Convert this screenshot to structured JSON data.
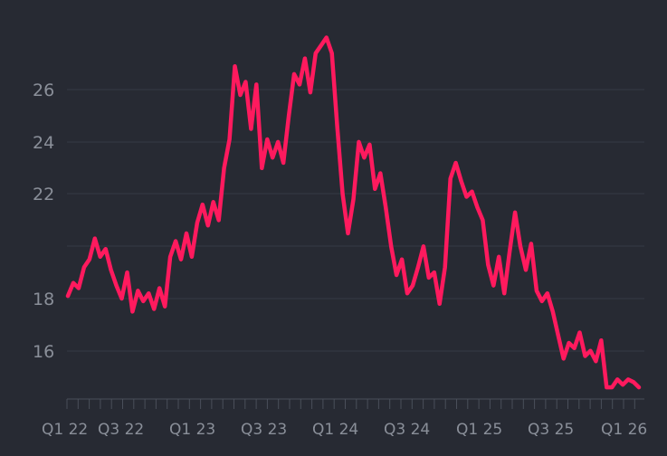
{
  "chart_data": {
    "type": "line",
    "title": "",
    "xlabel": "",
    "ylabel": "",
    "grid": true,
    "ylim": [
      14.3,
      28.4
    ],
    "y_ticks": [
      16,
      18,
      22,
      24,
      26
    ],
    "x_ticks": [
      "Q1 22",
      "Q3 22",
      "Q1 23",
      "Q3 23",
      "Q1 24",
      "Q3 24",
      "Q1 25",
      "Q3 25",
      "Q1 26"
    ],
    "series": [
      {
        "color": "#ff1a5e",
        "points": [
          [
            "Q1 22",
            18.1
          ],
          [
            "Q1 22",
            18.6
          ],
          [
            "Q1 22",
            18.4
          ],
          [
            "Q1 22",
            19.2
          ],
          [
            "Q1 22",
            19.5
          ],
          [
            "Q2 22",
            20.3
          ],
          [
            "Q2 22",
            19.6
          ],
          [
            "Q2 22",
            19.9
          ],
          [
            "Q2 22",
            19.1
          ],
          [
            "Q2 22",
            18.5
          ],
          [
            "Q3 22",
            18.0
          ],
          [
            "Q3 22",
            19.0
          ],
          [
            "Q3 22",
            17.5
          ],
          [
            "Q3 22",
            18.3
          ],
          [
            "Q3 22",
            17.9
          ],
          [
            "Q3 22",
            18.2
          ],
          [
            "Q4 22",
            17.6
          ],
          [
            "Q4 22",
            18.4
          ],
          [
            "Q4 22",
            17.7
          ],
          [
            "Q4 22",
            19.6
          ],
          [
            "Q4 22",
            20.2
          ],
          [
            "Q4 22",
            19.5
          ],
          [
            "Q1 23",
            20.5
          ],
          [
            "Q1 23",
            19.6
          ],
          [
            "Q1 23",
            20.9
          ],
          [
            "Q1 23",
            21.6
          ],
          [
            "Q1 23",
            20.8
          ],
          [
            "Q2 23",
            21.7
          ],
          [
            "Q2 23",
            21.0
          ],
          [
            "Q2 23",
            23.0
          ],
          [
            "Q2 23",
            24.1
          ],
          [
            "Q2 23",
            26.9
          ],
          [
            "Q3 23",
            25.8
          ],
          [
            "Q3 23",
            26.3
          ],
          [
            "Q3 23",
            24.5
          ],
          [
            "Q3 23",
            26.2
          ],
          [
            "Q3 23",
            23.0
          ],
          [
            "Q3 23",
            24.1
          ],
          [
            "Q3 23",
            23.4
          ],
          [
            "Q3 23",
            24.0
          ],
          [
            "Q3 23",
            23.2
          ],
          [
            "Q3 23",
            25.0
          ],
          [
            "Q4 23",
            26.6
          ],
          [
            "Q4 23",
            26.2
          ],
          [
            "Q4 23",
            27.2
          ],
          [
            "Q4 23",
            25.9
          ],
          [
            "Q4 23",
            27.4
          ],
          [
            "Q4 23",
            27.7
          ],
          [
            "Q4 23",
            28.0
          ],
          [
            "Q4 23",
            27.4
          ],
          [
            "Q1 24",
            24.6
          ],
          [
            "Q1 24",
            22.0
          ],
          [
            "Q1 24",
            20.5
          ],
          [
            "Q1 24",
            21.8
          ],
          [
            "Q1 24",
            24.0
          ],
          [
            "Q1 24",
            23.4
          ],
          [
            "Q1 24",
            23.9
          ],
          [
            "Q2 24",
            22.2
          ],
          [
            "Q2 24",
            22.8
          ],
          [
            "Q2 24",
            21.5
          ],
          [
            "Q2 24",
            20.0
          ],
          [
            "Q2 24",
            18.9
          ],
          [
            "Q2 24",
            19.5
          ],
          [
            "Q2 24",
            18.2
          ],
          [
            "Q3 24",
            18.5
          ],
          [
            "Q3 24",
            19.2
          ],
          [
            "Q3 24",
            20.0
          ],
          [
            "Q3 24",
            18.8
          ],
          [
            "Q3 24",
            19.0
          ],
          [
            "Q3 24",
            17.8
          ],
          [
            "Q3 24",
            19.2
          ],
          [
            "Q4 24",
            22.6
          ],
          [
            "Q4 24",
            23.2
          ],
          [
            "Q4 24",
            22.5
          ],
          [
            "Q4 24",
            21.9
          ],
          [
            "Q4 24",
            22.1
          ],
          [
            "Q4 24",
            21.5
          ],
          [
            "Q4 24",
            21.0
          ],
          [
            "Q1 25",
            19.3
          ],
          [
            "Q1 25",
            18.5
          ],
          [
            "Q1 25",
            19.6
          ],
          [
            "Q1 25",
            18.2
          ],
          [
            "Q1 25",
            19.8
          ],
          [
            "Q1 25",
            21.3
          ],
          [
            "Q1 25",
            20.0
          ],
          [
            "Q2 25",
            19.1
          ],
          [
            "Q2 25",
            20.1
          ],
          [
            "Q2 25",
            18.3
          ],
          [
            "Q2 25",
            17.9
          ],
          [
            "Q2 25",
            18.2
          ],
          [
            "Q2 25",
            17.5
          ],
          [
            "Q3 25",
            16.6
          ],
          [
            "Q3 25",
            15.7
          ],
          [
            "Q3 25",
            16.3
          ],
          [
            "Q3 25",
            16.1
          ],
          [
            "Q3 25",
            16.7
          ],
          [
            "Q4 25",
            15.8
          ],
          [
            "Q4 25",
            16.0
          ],
          [
            "Q4 25",
            15.6
          ],
          [
            "Q4 25",
            16.4
          ],
          [
            "Q4 25",
            14.6
          ],
          [
            "Q4 25",
            14.6
          ],
          [
            "Q1 26",
            14.9
          ],
          [
            "Q1 26",
            14.7
          ],
          [
            "Q1 26",
            14.9
          ],
          [
            "Q1 26",
            14.8
          ],
          [
            "Q1 26",
            14.6
          ]
        ]
      }
    ]
  }
}
